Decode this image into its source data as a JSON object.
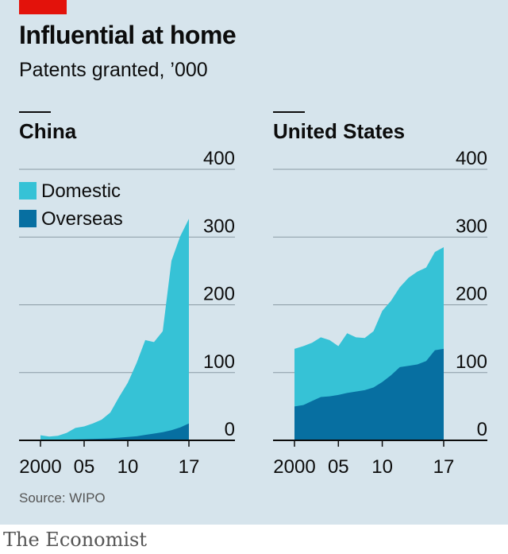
{
  "header": {
    "title": "Influential at home",
    "subtitle": "Patents granted, ’000"
  },
  "footer": {
    "source": "Source: WIPO",
    "brand": "The Economist"
  },
  "colors": {
    "domestic": "#36c2d6",
    "overseas": "#076fa1",
    "background": "#d6e4ec",
    "gridline": "#8a9aa3",
    "brand_red": "#e3120b"
  },
  "chart_data": [
    {
      "type": "area",
      "stacked": true,
      "title": "China",
      "legend": [
        "Domestic",
        "Overseas"
      ],
      "legend_placement": "top-left",
      "x": [
        2000,
        2001,
        2002,
        2003,
        2004,
        2005,
        2006,
        2007,
        2008,
        2009,
        2010,
        2011,
        2012,
        2013,
        2014,
        2015,
        2016,
        2017
      ],
      "x_tick_values": [
        2000,
        2005,
        2010,
        2017
      ],
      "x_tick_labels": [
        "2000",
        "05",
        "10",
        "17"
      ],
      "y_ticks": [
        0,
        100,
        200,
        300,
        400
      ],
      "ylim": [
        0,
        400
      ],
      "y_axis_position": "right",
      "grid": true,
      "series": [
        {
          "name": "Overseas",
          "values": [
            0.5,
            0.6,
            0.8,
            1,
            1.3,
            1.6,
            2,
            2.5,
            3,
            4,
            5,
            6,
            8,
            10,
            12,
            15,
            19,
            25
          ]
        },
        {
          "name": "Domestic",
          "values": [
            7,
            5,
            6,
            10,
            17,
            19,
            23,
            28,
            38,
            60,
            80,
            108,
            140,
            135,
            149,
            250,
            282,
            302
          ]
        }
      ]
    },
    {
      "type": "area",
      "stacked": true,
      "title": "United States",
      "x": [
        2000,
        2001,
        2002,
        2003,
        2004,
        2005,
        2006,
        2007,
        2008,
        2009,
        2010,
        2011,
        2012,
        2013,
        2014,
        2015,
        2016,
        2017
      ],
      "x_tick_values": [
        2000,
        2005,
        2010,
        2017
      ],
      "x_tick_labels": [
        "2000",
        "05",
        "10",
        "17"
      ],
      "y_ticks": [
        0,
        100,
        200,
        300,
        400
      ],
      "ylim": [
        0,
        400
      ],
      "y_axis_position": "right",
      "grid": true,
      "series": [
        {
          "name": "Overseas",
          "values": [
            50,
            52,
            58,
            64,
            65,
            67,
            70,
            72,
            74,
            78,
            86,
            96,
            108,
            110,
            112,
            117,
            133,
            135
          ]
        },
        {
          "name": "Domestic",
          "values": [
            85,
            87,
            86,
            88,
            83,
            72,
            88,
            80,
            77,
            83,
            105,
            110,
            118,
            130,
            137,
            138,
            145,
            150
          ]
        }
      ]
    }
  ]
}
